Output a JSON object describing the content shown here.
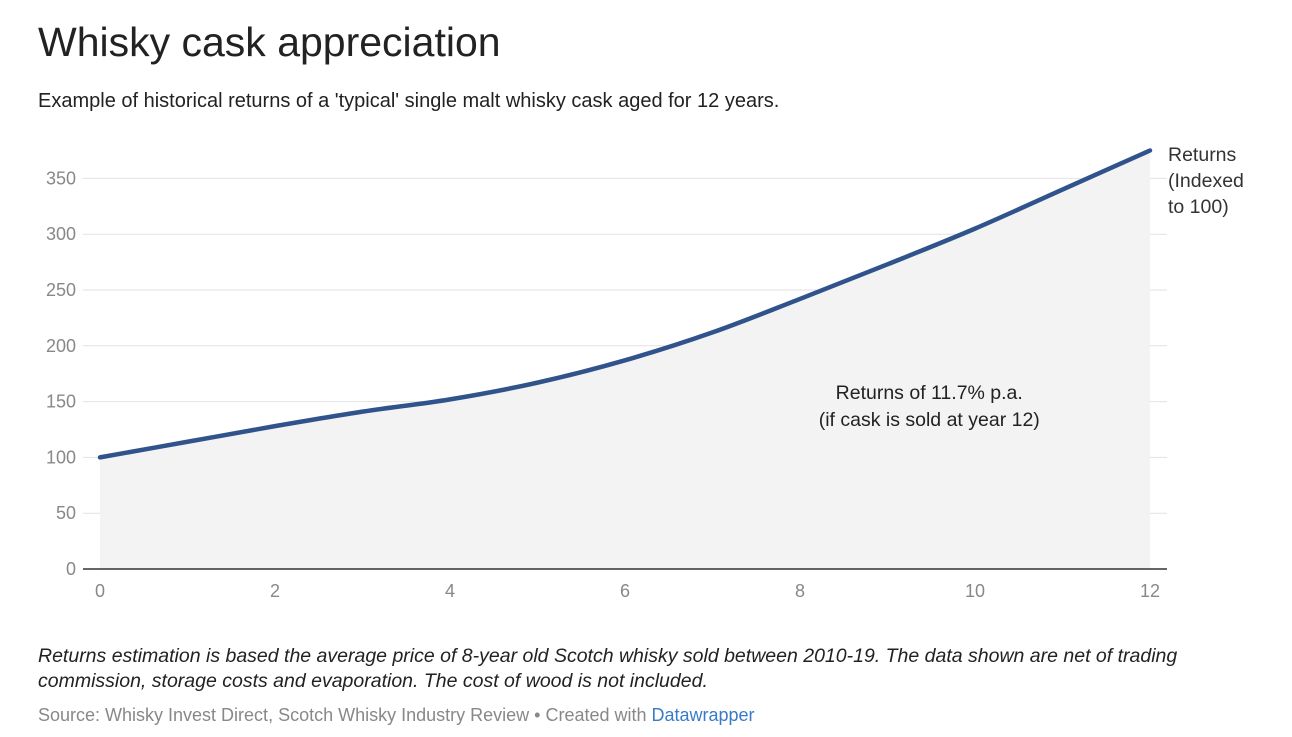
{
  "header": {
    "title": "Whisky cask appreciation",
    "subtitle": "Example of historical returns of a 'typical' single malt whisky cask aged for 12 years."
  },
  "chart_data": {
    "type": "area",
    "x": [
      0,
      1,
      2,
      3,
      4,
      5,
      6,
      7,
      8,
      9,
      10,
      11,
      12
    ],
    "series": [
      {
        "name": "Returns (Indexed to 100)",
        "label_lines": [
          "Returns",
          "(Indexed",
          "to 100)"
        ],
        "values": [
          100,
          114,
          128,
          141,
          152,
          167,
          187,
          212,
          242,
          273,
          305,
          340,
          375
        ]
      }
    ],
    "x_ticks": [
      0,
      2,
      4,
      6,
      8,
      10,
      12
    ],
    "y_ticks": [
      0,
      50,
      100,
      150,
      200,
      250,
      300,
      350
    ],
    "xlim": [
      0,
      12
    ],
    "ylim": [
      0,
      375
    ],
    "xlabel": "",
    "ylabel": "",
    "grid": true,
    "line_color": "#30538c",
    "fill_color": "#f3f3f4",
    "annotation": {
      "lines": [
        "Returns of 11.7% p.a.",
        "(if cask is sold at year 12)"
      ],
      "x": 9.5,
      "y": 154
    }
  },
  "footer": {
    "notes": "Returns estimation is based the average price of 8-year old Scotch whisky sold between 2010-19. The data shown are net of trading commission, storage costs and evaporation. The cost of wood is not included.",
    "source_prefix": "Source: Whisky Invest Direct, Scotch Whisky Industry Review • Created with ",
    "source_link": "Datawrapper"
  }
}
